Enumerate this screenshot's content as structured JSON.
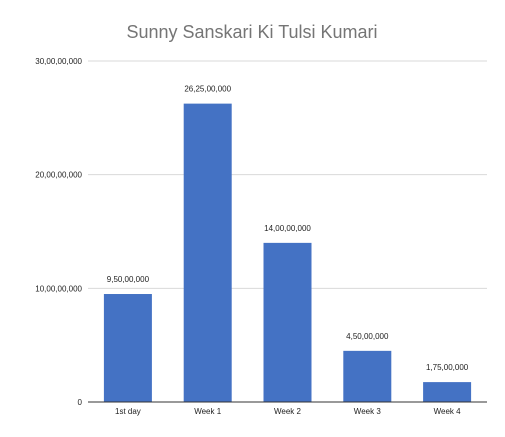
{
  "chart_data": {
    "type": "bar",
    "title": "Sunny Sanskari Ki Tulsi Kumari",
    "categories": [
      "1st day",
      "Week 1",
      "Week 2",
      "Week 3",
      "Week 4"
    ],
    "values": [
      95000000,
      262500000,
      140000000,
      45000000,
      17500000
    ],
    "value_labels": [
      "9,50,00,000",
      "26,25,00,000",
      "14,00,00,000",
      "4,50,00,000",
      "1,75,00,000"
    ],
    "yticks": [
      0,
      100000000,
      200000000,
      300000000
    ],
    "ytick_labels": [
      "0",
      "10,00,00,000",
      "20,00,00,000",
      "30,00,00,000"
    ],
    "ylim": [
      0,
      300000000
    ],
    "xlabel": "",
    "ylabel": "",
    "grid": true,
    "bar_color": "#4472c4",
    "grid_color": "#d9d9d9",
    "baseline_color": "#333333",
    "title_color": "#757575"
  }
}
